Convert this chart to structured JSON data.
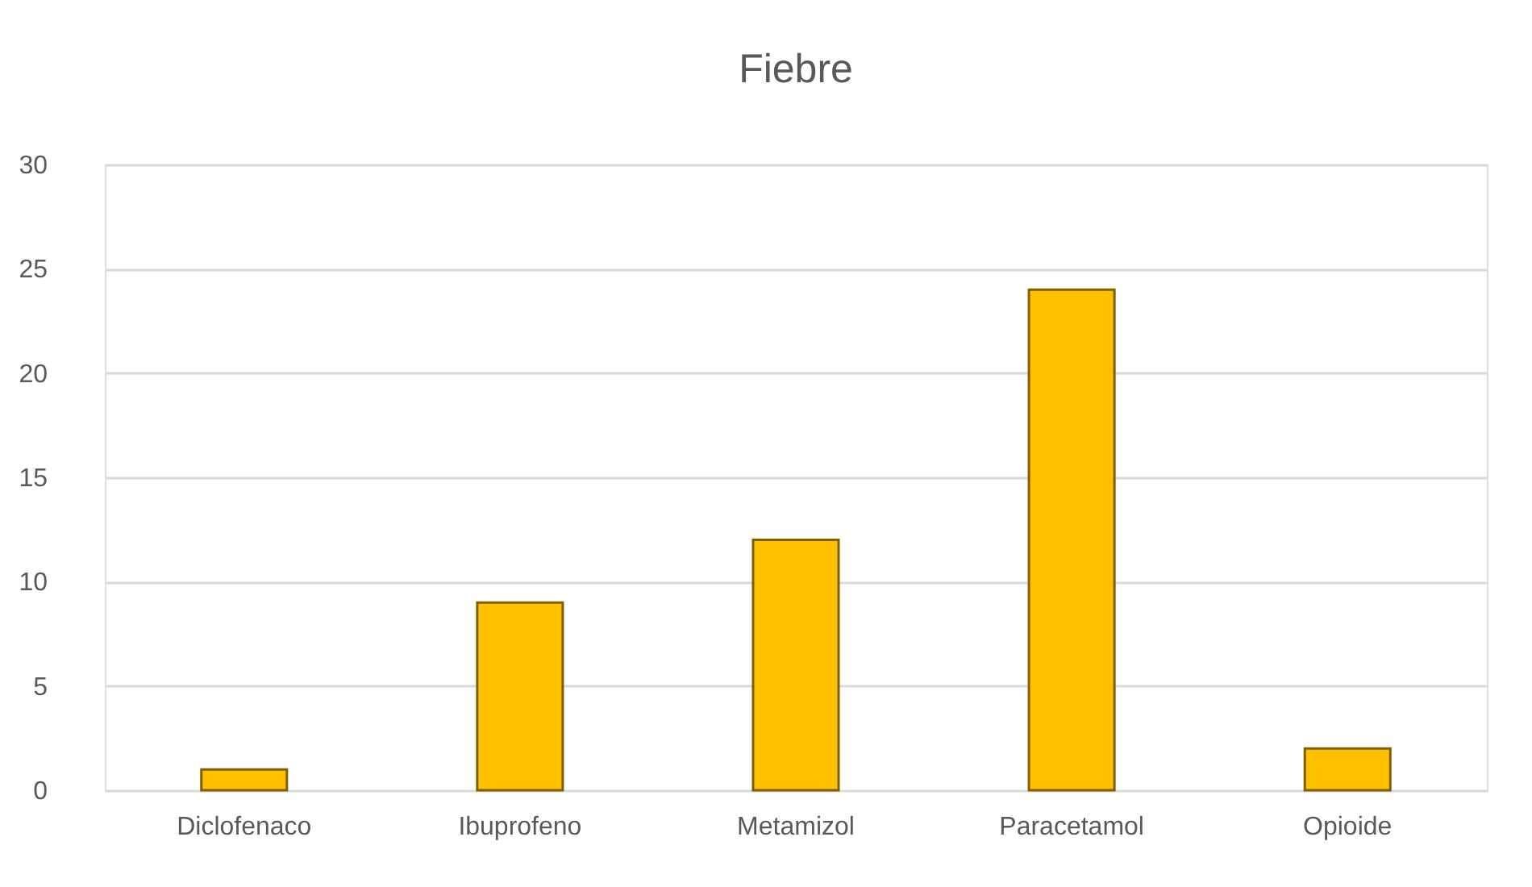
{
  "chart_data": {
    "type": "bar",
    "title": "Fiebre",
    "categories": [
      "Diclofenaco",
      "Ibuprofeno",
      "Metamizol",
      "Paracetamol",
      "Opioide"
    ],
    "values": [
      1,
      9,
      12,
      24,
      2
    ],
    "color": "#ffc000",
    "ylim": [
      0,
      30
    ],
    "yticks": [
      0,
      5,
      10,
      15,
      20,
      25,
      30
    ],
    "grid": "y"
  }
}
